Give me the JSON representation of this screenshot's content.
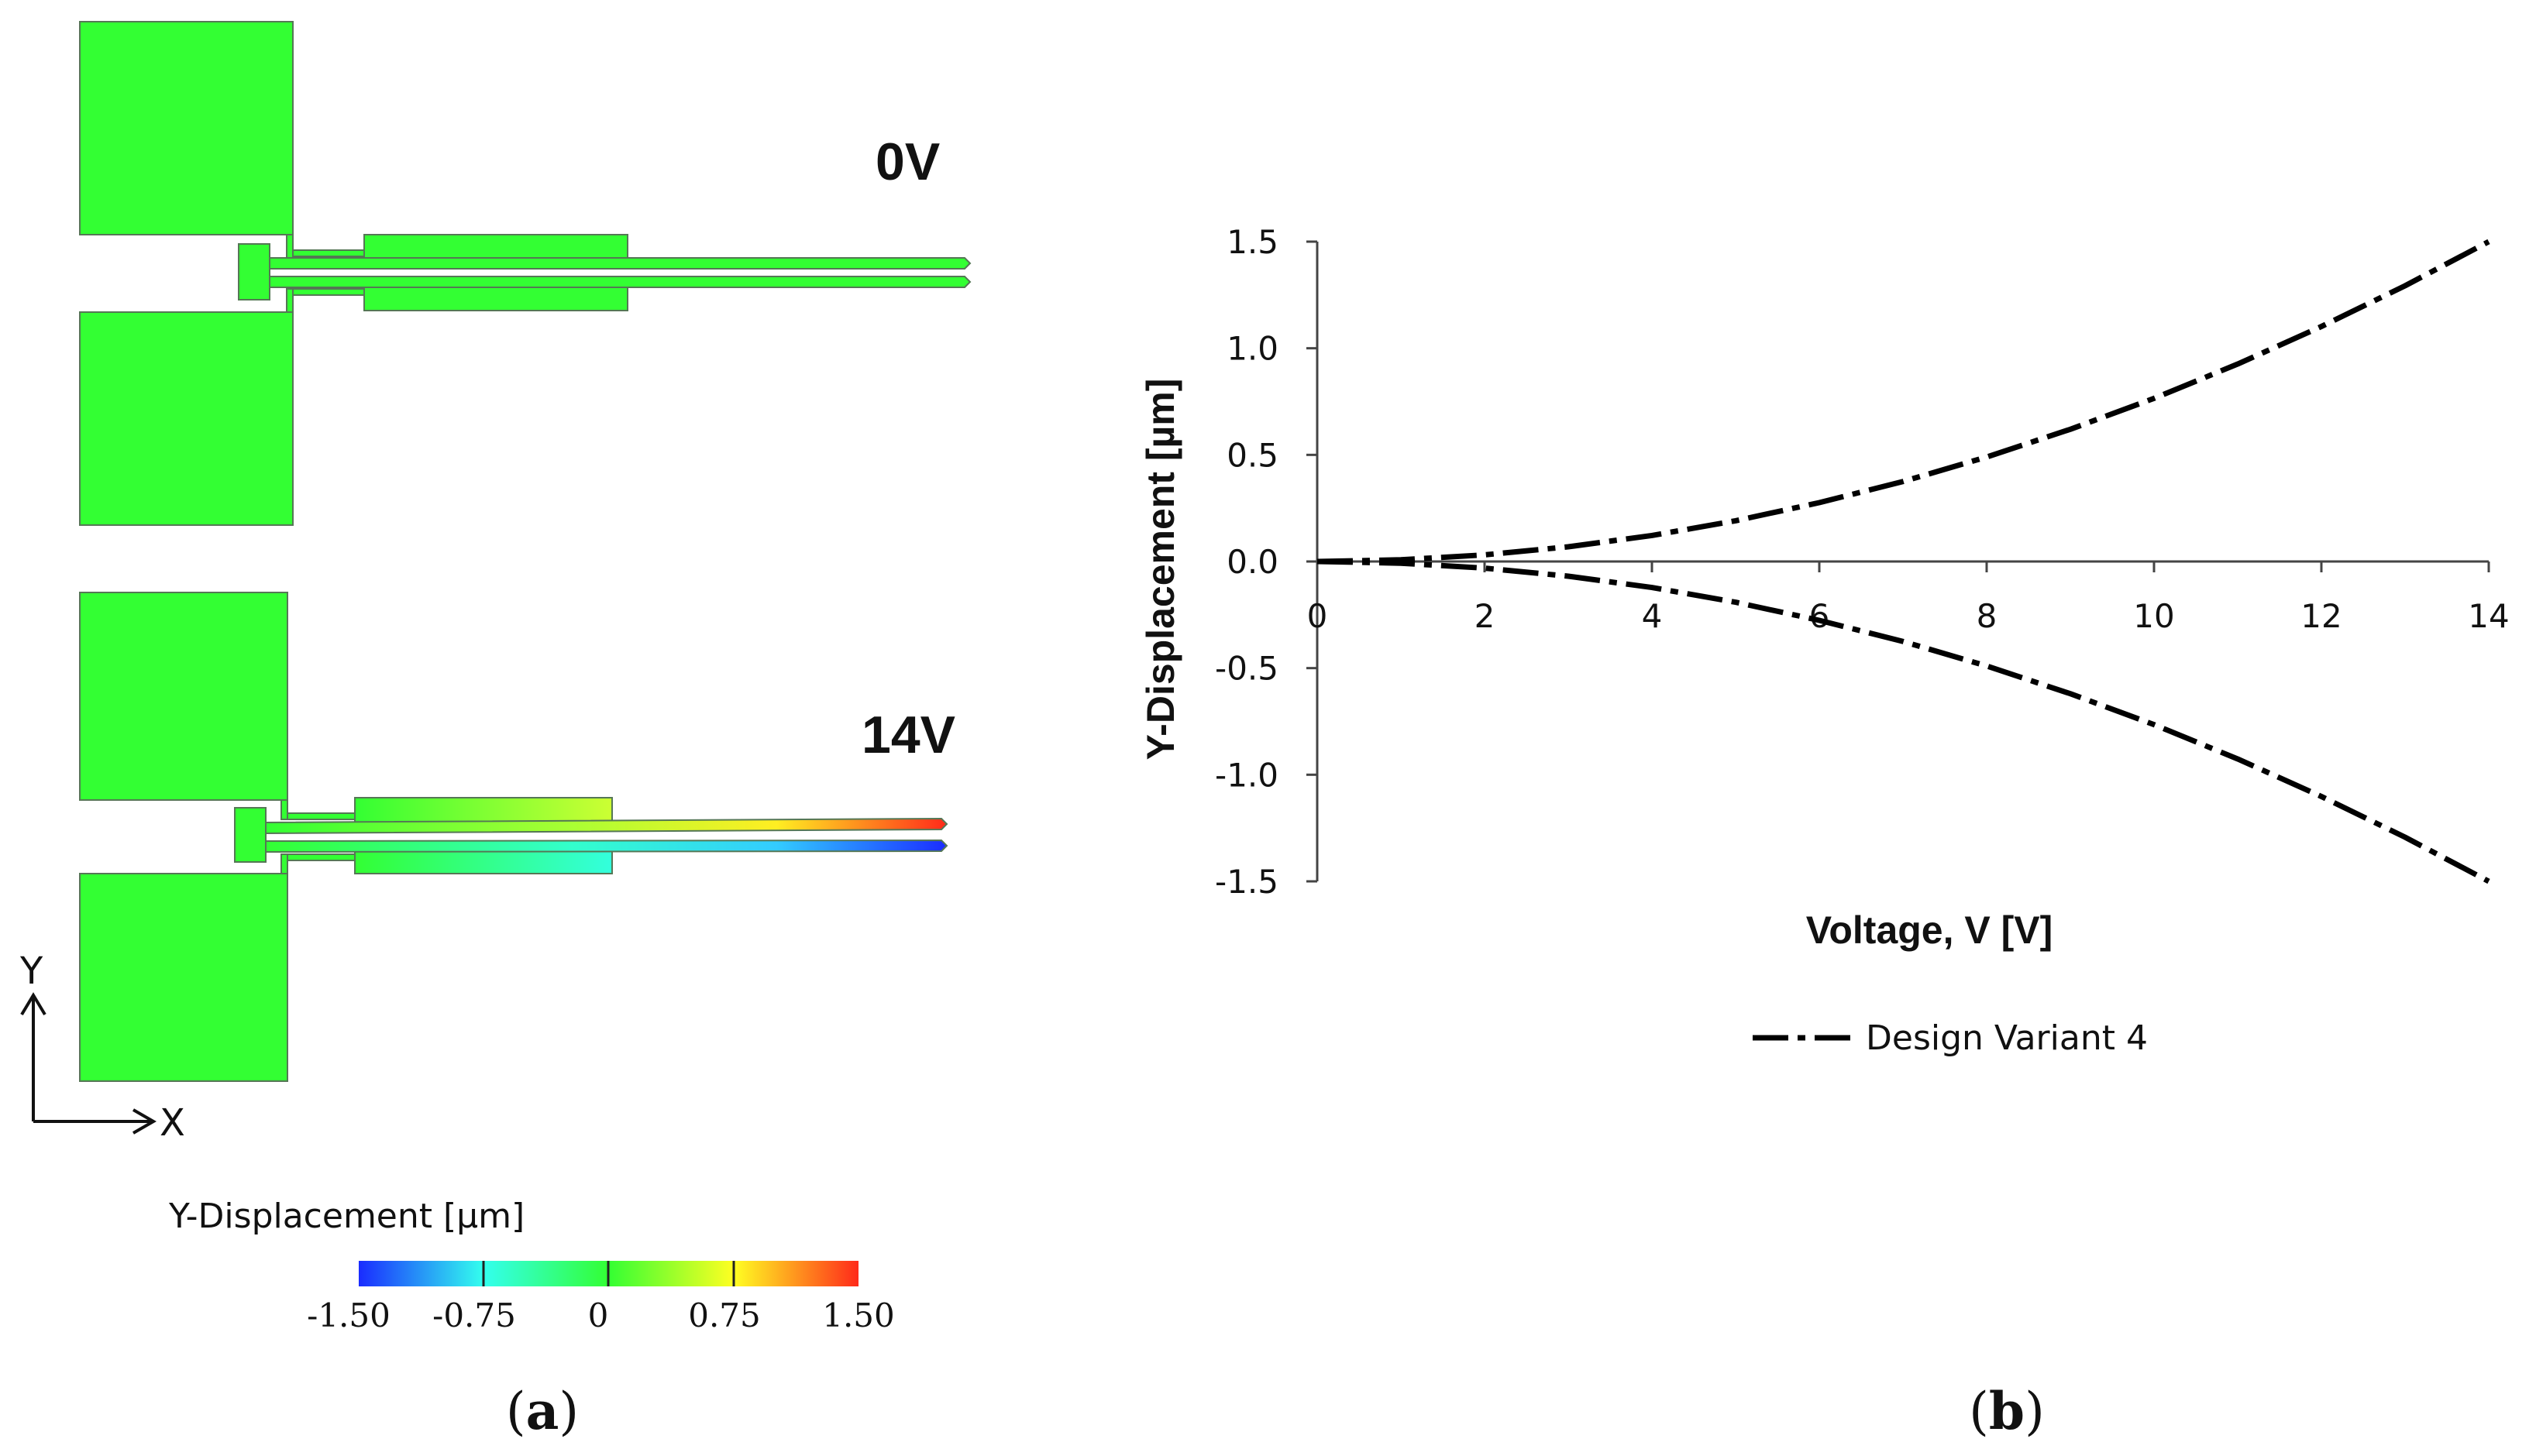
{
  "panel_a": {
    "label_0v": "0V",
    "label_14v": "14V",
    "axis_y": "Y",
    "axis_x": "X",
    "colorbar_title": "Y-Displacement [µm]",
    "colorbar_ticks": [
      "-1.50",
      "-0.75",
      "0",
      "0.75",
      "1.50"
    ],
    "colors": {
      "structure": "#33ff33",
      "colormap": [
        "#1a2cff",
        "#33ffee",
        "#33ff33",
        "#ffff22",
        "#ff2a1a"
      ]
    },
    "caption_open": "(",
    "caption_letter": "a",
    "caption_close": ")"
  },
  "panel_b": {
    "caption_open": "(",
    "caption_letter": "b",
    "caption_close": ")"
  },
  "chart_data": {
    "type": "line",
    "title": "",
    "xlabel": "Voltage, V [V]",
    "ylabel": "Y-Displacement [µm]",
    "xlim": [
      0,
      14
    ],
    "ylim": [
      -1.5,
      1.5
    ],
    "x_ticks": [
      "0",
      "2",
      "4",
      "6",
      "8",
      "10",
      "12",
      "14"
    ],
    "y_ticks": [
      "1.5",
      "1.0",
      "0.5",
      "0.0",
      "-0.5",
      "-1.0",
      "-1.5"
    ],
    "grid": false,
    "legend_position": "bottom",
    "line_style": "dash-dot",
    "line_color": "#000000",
    "series": [
      {
        "name": "Design Variant 4",
        "x": [
          0,
          1,
          2,
          3,
          4,
          5,
          6,
          7,
          8,
          9,
          10,
          11,
          12,
          13,
          14
        ],
        "y": [
          0,
          0.008,
          0.031,
          0.069,
          0.122,
          0.191,
          0.276,
          0.375,
          0.49,
          0.62,
          0.765,
          0.926,
          1.102,
          1.293,
          1.5
        ]
      },
      {
        "name": "",
        "x": [
          0,
          1,
          2,
          3,
          4,
          5,
          6,
          7,
          8,
          9,
          10,
          11,
          12,
          13,
          14
        ],
        "y": [
          0,
          -0.008,
          -0.031,
          -0.069,
          -0.122,
          -0.191,
          -0.276,
          -0.375,
          -0.49,
          -0.62,
          -0.765,
          -0.926,
          -1.102,
          -1.293,
          -1.5
        ]
      }
    ]
  }
}
